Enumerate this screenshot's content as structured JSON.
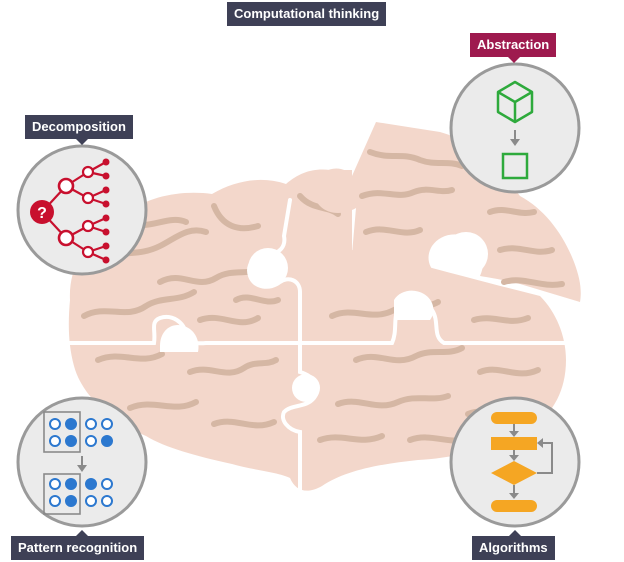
{
  "diagram": {
    "title": "Computational thinking",
    "pillars": [
      {
        "label": "Decomposition"
      },
      {
        "label": "Abstraction"
      },
      {
        "label": "Pattern recognition"
      },
      {
        "label": "Algorithms"
      }
    ],
    "question_mark": "?"
  },
  "colors": {
    "brain": "#f3d7cb",
    "brain_fold": "#d5b7a4",
    "label_dark": "#3e4056",
    "label_accent": "#9e1a4e",
    "circle_fill": "#ebebeb",
    "circle_border": "#9a9a9a",
    "decomposition": "#c8102e",
    "abstraction": "#2eaa3c",
    "pattern": "#2c78cf",
    "algorithm": "#f5a623"
  }
}
